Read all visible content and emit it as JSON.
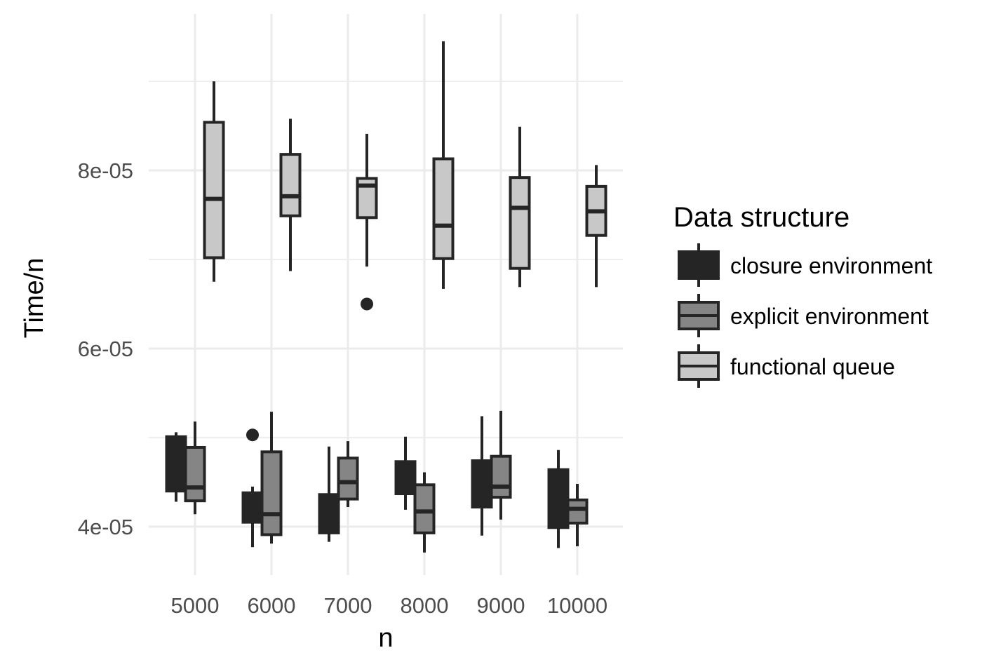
{
  "chart_data": {
    "type": "boxplot",
    "xlabel": "n",
    "ylabel": "Time/n",
    "categories": [
      "5000",
      "6000",
      "7000",
      "8000",
      "9000",
      "10000"
    ],
    "ylim": [
      3.5e-05,
      9.8e-05
    ],
    "yticks": [
      4e-05,
      6e-05,
      8e-05
    ],
    "ytick_labels": [
      "4e-05",
      "6e-05",
      "8e-05"
    ],
    "grid": true,
    "legend": {
      "title": "Data structure",
      "position": "right"
    },
    "series": [
      {
        "name": "closure environment",
        "color": "#252525",
        "median_color": "#252525",
        "boxes": [
          {
            "category": "5000",
            "whisker_low": 4.28e-05,
            "q1": 4.4e-05,
            "median": 4.95e-05,
            "q3": 5.01e-05,
            "whisker_high": 5.06e-05,
            "outliers": []
          },
          {
            "category": "6000",
            "whisker_low": 3.77e-05,
            "q1": 4.05e-05,
            "median": 4.35e-05,
            "q3": 4.38e-05,
            "whisker_high": 4.45e-05,
            "outliers": [
              5.03e-05
            ]
          },
          {
            "category": "7000",
            "whisker_low": 3.83e-05,
            "q1": 3.93e-05,
            "median": 4.1e-05,
            "q3": 4.36e-05,
            "whisker_high": 4.9e-05,
            "outliers": []
          },
          {
            "category": "8000",
            "whisker_low": 4.19e-05,
            "q1": 4.37e-05,
            "median": 4.6e-05,
            "q3": 4.73e-05,
            "whisker_high": 5.01e-05,
            "outliers": []
          },
          {
            "category": "9000",
            "whisker_low": 3.9e-05,
            "q1": 4.22e-05,
            "median": 4.55e-05,
            "q3": 4.74e-05,
            "whisker_high": 5.24e-05,
            "outliers": []
          },
          {
            "category": "10000",
            "whisker_low": 3.76e-05,
            "q1": 3.99e-05,
            "median": 4.4e-05,
            "q3": 4.64e-05,
            "whisker_high": 4.86e-05,
            "outliers": []
          }
        ]
      },
      {
        "name": "explicit environment",
        "color": "#858585",
        "median_color": "#252525",
        "boxes": [
          {
            "category": "5000",
            "whisker_low": 4.14e-05,
            "q1": 4.29e-05,
            "median": 4.44e-05,
            "q3": 4.89e-05,
            "whisker_high": 5.18e-05,
            "outliers": []
          },
          {
            "category": "6000",
            "whisker_low": 3.81e-05,
            "q1": 3.91e-05,
            "median": 4.14e-05,
            "q3": 4.84e-05,
            "whisker_high": 5.29e-05,
            "outliers": []
          },
          {
            "category": "7000",
            "whisker_low": 4.22e-05,
            "q1": 4.31e-05,
            "median": 4.5e-05,
            "q3": 4.77e-05,
            "whisker_high": 4.96e-05,
            "outliers": []
          },
          {
            "category": "8000",
            "whisker_low": 3.71e-05,
            "q1": 3.93e-05,
            "median": 4.17e-05,
            "q3": 4.47e-05,
            "whisker_high": 4.61e-05,
            "outliers": []
          },
          {
            "category": "9000",
            "whisker_low": 4.08e-05,
            "q1": 4.33e-05,
            "median": 4.45e-05,
            "q3": 4.79e-05,
            "whisker_high": 5.3e-05,
            "outliers": []
          },
          {
            "category": "10000",
            "whisker_low": 3.78e-05,
            "q1": 4.04e-05,
            "median": 4.2e-05,
            "q3": 4.3e-05,
            "whisker_high": 4.48e-05,
            "outliers": []
          }
        ]
      },
      {
        "name": "functional queue",
        "color": "#c8c8c8",
        "median_color": "#252525",
        "boxes": [
          {
            "category": "5000",
            "whisker_low": 6.75e-05,
            "q1": 7.02e-05,
            "median": 7.68e-05,
            "q3": 8.54e-05,
            "whisker_high": 9e-05,
            "outliers": []
          },
          {
            "category": "6000",
            "whisker_low": 6.87e-05,
            "q1": 7.49e-05,
            "median": 7.71e-05,
            "q3": 8.18e-05,
            "whisker_high": 8.58e-05,
            "outliers": []
          },
          {
            "category": "7000",
            "whisker_low": 6.92e-05,
            "q1": 7.47e-05,
            "median": 7.83e-05,
            "q3": 7.91e-05,
            "whisker_high": 8.41e-05,
            "outliers": [
              6.5e-05
            ]
          },
          {
            "category": "8000",
            "whisker_low": 6.67e-05,
            "q1": 7.01e-05,
            "median": 7.38e-05,
            "q3": 8.13e-05,
            "whisker_high": 9.45e-05,
            "outliers": []
          },
          {
            "category": "9000",
            "whisker_low": 6.69e-05,
            "q1": 6.9e-05,
            "median": 7.58e-05,
            "q3": 7.92e-05,
            "whisker_high": 8.49e-05,
            "outliers": []
          },
          {
            "category": "10000",
            "whisker_low": 6.69e-05,
            "q1": 7.27e-05,
            "median": 7.54e-05,
            "q3": 7.82e-05,
            "whisker_high": 8.06e-05,
            "outliers": []
          }
        ]
      }
    ]
  }
}
